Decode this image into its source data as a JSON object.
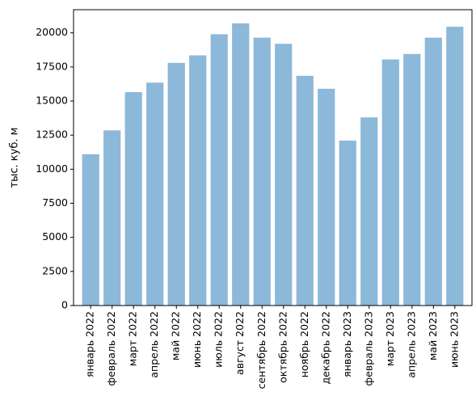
{
  "chart_data": {
    "type": "bar",
    "title": "",
    "xlabel": "",
    "ylabel": "тыс. куб. м",
    "ylim": [
      0,
      21700
    ],
    "yticks": [
      0,
      2500,
      5000,
      7500,
      10000,
      12500,
      15000,
      17500,
      20000
    ],
    "ytick_labels": [
      "0",
      "2500",
      "5000",
      "7500",
      "10000",
      "12500",
      "15000",
      "17500",
      "20000"
    ],
    "categories": [
      "январь 2022",
      "февраль 2022",
      "март 2022",
      "апрель 2022",
      "май 2022",
      "июнь 2022",
      "июль 2022",
      "август 2022",
      "сентябрь 2022",
      "октябрь 2022",
      "ноябрь 2022",
      "декабрь 2022",
      "январь 2023",
      "февраль 2023",
      "март 2023",
      "апрель 2023",
      "май 2023",
      "июнь 2023"
    ],
    "values": [
      11100,
      12850,
      15650,
      16350,
      17800,
      18350,
      19900,
      20700,
      19650,
      19200,
      16850,
      15900,
      12100,
      13800,
      18050,
      18450,
      19650,
      20450
    ],
    "bar_color": "#8cb8d9",
    "grid": false,
    "legend": "none"
  }
}
